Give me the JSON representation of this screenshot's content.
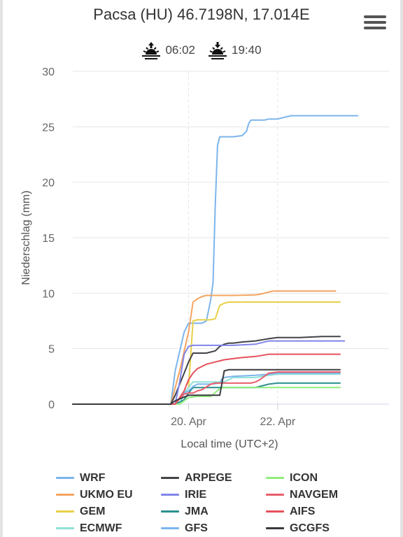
{
  "header": {
    "title": "Pacsa (HU) 46.7198N, 17.014E",
    "sunrise": "06:02",
    "sunset": "19:40"
  },
  "icons": {
    "menu": "hamburger-menu-icon",
    "sunrise": "sunrise-icon",
    "sunset": "sunset-icon"
  },
  "chart_data": {
    "type": "line",
    "title": "",
    "xlabel": "Local time (UTC+2)",
    "ylabel": "Niederschlag (mm)",
    "xlim": [
      -2.6,
      4.5
    ],
    "ylim": [
      0,
      30
    ],
    "x_ticks": [
      {
        "x": 0,
        "label": "20. Apr"
      },
      {
        "x": 2,
        "label": "22. Apr"
      }
    ],
    "y_ticks": [
      0,
      5,
      10,
      15,
      20,
      25,
      30
    ],
    "grid": true,
    "legend_position": "bottom",
    "series": [
      {
        "name": "WRF",
        "color": "#7cb5ec",
        "x": [
          -2.6,
          -0.4,
          -0.3,
          -0.1,
          0.0,
          0.3,
          0.4,
          0.5,
          0.55,
          0.6,
          0.65,
          0.7,
          0.8,
          1.0,
          1.2,
          1.3,
          1.35,
          1.4,
          1.5,
          1.7,
          1.8,
          2.0,
          2.1,
          2.3,
          3.5,
          3.8
        ],
        "y": [
          0,
          0,
          3,
          6.5,
          7.3,
          7.3,
          7.5,
          9.5,
          11,
          18,
          23.3,
          24.1,
          24.1,
          24.1,
          24.2,
          24.6,
          25.3,
          25.6,
          25.6,
          25.6,
          25.7,
          25.7,
          25.8,
          26.0,
          26.0,
          26.0
        ]
      },
      {
        "name": "UKMO EU",
        "color": "#f4a460",
        "x": [
          -2.6,
          -0.4,
          -0.2,
          0.0,
          0.1,
          0.2,
          0.3,
          0.4,
          0.5,
          0.6,
          1.0,
          1.5,
          1.6,
          1.7,
          1.8,
          1.9,
          2.2,
          2.8,
          3.3
        ],
        "y": [
          0,
          0,
          3,
          6.5,
          9.2,
          9.5,
          9.7,
          9.8,
          9.8,
          9.8,
          9.8,
          9.85,
          9.9,
          10.0,
          10.1,
          10.2,
          10.2,
          10.2,
          10.2
        ]
      },
      {
        "name": "GEM",
        "color": "#e8d048",
        "x": [
          -2.6,
          -0.3,
          -0.1,
          0.0,
          0.1,
          0.2,
          0.3,
          0.4,
          0.5,
          0.6,
          0.7,
          0.8,
          0.9,
          1.0,
          1.2,
          1.5,
          2.0,
          2.5,
          3.4
        ],
        "y": [
          0,
          0,
          1,
          1.5,
          7.5,
          7.6,
          7.6,
          7.6,
          7.6,
          7.7,
          8.9,
          9.1,
          9.2,
          9.2,
          9.2,
          9.2,
          9.2,
          9.2,
          9.2
        ]
      },
      {
        "name": "ECMWF",
        "color": "#90e0d8",
        "x": [
          -2.6,
          -0.2,
          -0.1,
          0.0,
          0.1,
          0.3,
          0.8,
          0.9,
          1.0,
          1.2,
          1.5,
          1.8,
          2.0,
          2.2,
          2.5,
          2.8,
          3.0,
          3.4
        ],
        "y": [
          0,
          0,
          1,
          1.5,
          2.0,
          2.0,
          2.0,
          2.2,
          2.4,
          2.4,
          2.4,
          2.6,
          2.7,
          2.7,
          2.7,
          2.7,
          2.7,
          2.7
        ]
      },
      {
        "name": "ARPEGE",
        "color": "#434348",
        "x": [
          -2.6,
          -0.4,
          -0.3,
          -0.2,
          -0.1,
          0.0,
          0.1,
          0.2,
          0.3,
          0.4,
          0.5,
          0.6,
          0.7,
          0.8,
          0.9,
          1.0,
          1.2,
          1.5,
          1.8,
          2.0,
          2.5,
          3.0,
          3.4
        ],
        "y": [
          0,
          0,
          0.8,
          1.8,
          2.8,
          3.8,
          4.6,
          4.6,
          4.6,
          4.6,
          4.7,
          4.8,
          5.2,
          5.4,
          5.5,
          5.5,
          5.6,
          5.7,
          5.9,
          6.0,
          6.0,
          6.1,
          6.1
        ]
      },
      {
        "name": "IRIE",
        "color": "#8085e9",
        "x": [
          -2.6,
          -0.3,
          -0.2,
          -0.1,
          0.0,
          0.1,
          0.2,
          0.5,
          0.8,
          1.0,
          1.5,
          1.8,
          2.0,
          2.5,
          3.0,
          3.5
        ],
        "y": [
          0,
          0,
          2,
          4.5,
          5.2,
          5.3,
          5.3,
          5.3,
          5.3,
          5.3,
          5.4,
          5.7,
          5.7,
          5.7,
          5.7,
          5.7
        ]
      },
      {
        "name": "JMA",
        "color": "#2b908f",
        "x": [
          -2.6,
          -0.3,
          -0.1,
          0.0,
          0.1,
          0.5,
          1.0,
          1.3,
          1.5,
          1.6,
          1.8,
          2.0,
          2.5,
          3.0,
          3.4
        ],
        "y": [
          0,
          0,
          0.4,
          1.0,
          1.5,
          1.5,
          1.5,
          1.5,
          1.5,
          1.6,
          1.8,
          1.9,
          1.9,
          1.9,
          1.9
        ]
      },
      {
        "name": "GFS",
        "color": "#7cb5ec",
        "x": [
          -2.6,
          -0.3,
          -0.2,
          -0.1,
          0.0,
          0.1,
          0.2,
          0.5,
          0.7,
          0.75,
          0.8,
          1.0,
          1.5,
          1.8,
          2.0,
          2.5,
          3.0,
          3.4
        ],
        "y": [
          0,
          0,
          0.5,
          1.0,
          1.2,
          1.6,
          1.8,
          1.8,
          1.9,
          2.3,
          2.4,
          2.5,
          2.6,
          2.7,
          2.8,
          2.8,
          2.8,
          2.8
        ]
      },
      {
        "name": "ICON",
        "color": "#90ed7d",
        "x": [
          -2.6,
          -0.2,
          -0.1,
          0.0,
          0.2,
          0.5,
          0.7,
          0.8,
          1.0,
          1.5,
          2.0,
          2.5,
          3.0,
          3.4
        ],
        "y": [
          0,
          0,
          0.3,
          0.6,
          0.7,
          0.7,
          1.4,
          1.5,
          1.5,
          1.5,
          1.5,
          1.5,
          1.5,
          1.5
        ]
      },
      {
        "name": "NAVGEM",
        "color": "#e75f6b",
        "x": [
          -2.6,
          -0.3,
          -0.2,
          -0.1,
          0.0,
          0.1,
          0.2,
          0.3,
          0.5,
          0.6,
          0.7,
          0.8,
          1.0,
          1.2,
          1.4,
          1.5,
          1.6,
          1.8,
          2.0,
          2.5,
          3.0,
          3.4
        ],
        "y": [
          0,
          0,
          0.5,
          0.9,
          1.0,
          1.0,
          1.2,
          1.3,
          1.8,
          1.9,
          1.9,
          1.9,
          1.9,
          1.9,
          1.9,
          2.0,
          2.2,
          2.8,
          2.9,
          2.9,
          2.9,
          2.9
        ]
      },
      {
        "name": "AIFS",
        "color": "#e6515c",
        "x": [
          -2.6,
          -0.3,
          -0.1,
          0.0,
          0.1,
          0.2,
          0.3,
          0.4,
          0.5,
          0.6,
          0.7,
          0.8,
          0.9,
          1.0,
          1.2,
          1.5,
          1.8,
          2.0,
          2.5,
          3.0,
          3.4
        ],
        "y": [
          0,
          0,
          1.2,
          2.2,
          2.8,
          3.2,
          3.4,
          3.6,
          3.7,
          3.8,
          3.9,
          4.0,
          4.05,
          4.1,
          4.2,
          4.3,
          4.5,
          4.5,
          4.5,
          4.5,
          4.5
        ]
      },
      {
        "name": "GCGFS",
        "color": "#3a3a3f",
        "x": [
          -2.6,
          -0.4,
          -0.3,
          0.0,
          0.2,
          0.5,
          0.7,
          0.8,
          0.9,
          1.0,
          1.5,
          2.0,
          2.5,
          3.0,
          3.4
        ],
        "y": [
          0,
          0,
          0.3,
          0.8,
          0.8,
          0.8,
          0.8,
          3.0,
          3.1,
          3.1,
          3.1,
          3.1,
          3.1,
          3.1,
          3.1
        ]
      }
    ]
  }
}
